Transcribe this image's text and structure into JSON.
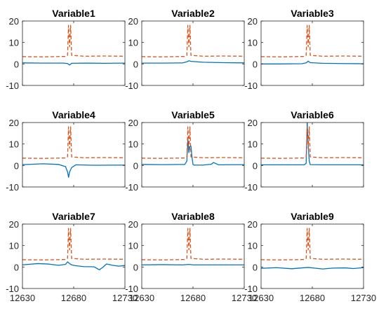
{
  "chart_data": [
    {
      "type": "line",
      "title": "Variable1",
      "xlim": [
        12630,
        12730
      ],
      "ylim": [
        -10,
        20
      ],
      "xticks": [
        12630,
        12680,
        12730
      ],
      "yticks": [
        -10,
        0,
        10,
        20
      ],
      "x_tick_labels_visible": false,
      "colors": {
        "series1": "#0072BD",
        "series2": "#D95319"
      },
      "series": [
        {
          "style": "solid",
          "x": [
            12630,
            12650,
            12670,
            12674,
            12676,
            12678,
            12690,
            12710,
            12730
          ],
          "y": [
            0.5,
            0.4,
            0.4,
            0.2,
            -0.5,
            0.3,
            0.4,
            0.3,
            0.4
          ]
        },
        {
          "style": "dashed",
          "x": [
            12630,
            12650,
            12672,
            12674,
            12675,
            12676,
            12677,
            12678,
            12690,
            12710,
            12730
          ],
          "y": [
            3.4,
            3.3,
            3.5,
            4,
            18,
            8,
            18,
            4,
            3.6,
            3.7,
            3.6
          ]
        }
      ]
    },
    {
      "type": "line",
      "title": "Variable2",
      "xlim": [
        12630,
        12730
      ],
      "ylim": [
        -10,
        20
      ],
      "xticks": [
        12630,
        12680,
        12730
      ],
      "yticks": [
        -10,
        0,
        10,
        20
      ],
      "x_tick_labels_visible": false,
      "colors": {
        "series1": "#0072BD",
        "series2": "#D95319"
      },
      "series": [
        {
          "style": "solid",
          "x": [
            12630,
            12650,
            12670,
            12674,
            12676,
            12678,
            12690,
            12710,
            12730
          ],
          "y": [
            0.4,
            0.4,
            0.5,
            1,
            1.5,
            1.2,
            0.8,
            0.6,
            0.5
          ]
        },
        {
          "style": "dashed",
          "x": [
            12630,
            12650,
            12672,
            12674,
            12675,
            12676,
            12677,
            12678,
            12690,
            12710,
            12730
          ],
          "y": [
            3.4,
            3.3,
            3.5,
            4,
            18,
            8,
            18,
            4,
            3.6,
            3.7,
            3.6
          ]
        }
      ]
    },
    {
      "type": "line",
      "title": "Variable3",
      "xlim": [
        12630,
        12730
      ],
      "ylim": [
        -10,
        20
      ],
      "xticks": [
        12630,
        12680,
        12730
      ],
      "yticks": [
        -10,
        0,
        10,
        20
      ],
      "x_tick_labels_visible": false,
      "colors": {
        "series1": "#0072BD",
        "series2": "#D95319"
      },
      "series": [
        {
          "style": "solid",
          "x": [
            12630,
            12650,
            12670,
            12674,
            12676,
            12678,
            12690,
            12710,
            12730
          ],
          "y": [
            0,
            0,
            0.1,
            0.5,
            1.3,
            0.6,
            0.3,
            0.2,
            0.1
          ]
        },
        {
          "style": "dashed",
          "x": [
            12630,
            12650,
            12672,
            12674,
            12675,
            12676,
            12677,
            12678,
            12690,
            12710,
            12730
          ],
          "y": [
            3.4,
            3.3,
            3.5,
            4,
            18,
            8,
            18,
            4,
            3.6,
            3.7,
            3.6
          ]
        }
      ]
    },
    {
      "type": "line",
      "title": "Variable4",
      "xlim": [
        12630,
        12730
      ],
      "ylim": [
        -10,
        20
      ],
      "xticks": [
        12630,
        12680,
        12730
      ],
      "yticks": [
        -10,
        0,
        10,
        20
      ],
      "x_tick_labels_visible": false,
      "colors": {
        "series1": "#0072BD",
        "series2": "#D95319"
      },
      "series": [
        {
          "style": "solid",
          "x": [
            12630,
            12650,
            12665,
            12672,
            12674,
            12675,
            12676,
            12678,
            12682,
            12700,
            12730
          ],
          "y": [
            0.4,
            0.8,
            0.5,
            -0.5,
            -3,
            -5.5,
            -3,
            -1,
            0.3,
            0.1,
            0.2
          ]
        },
        {
          "style": "dashed",
          "x": [
            12630,
            12650,
            12672,
            12674,
            12675,
            12676,
            12677,
            12678,
            12690,
            12710,
            12730
          ],
          "y": [
            3.4,
            3.3,
            3.5,
            4,
            18,
            8,
            18,
            4,
            3.6,
            3.7,
            3.6
          ]
        }
      ]
    },
    {
      "type": "line",
      "title": "Variable5",
      "xlim": [
        12630,
        12730
      ],
      "ylim": [
        -10,
        20
      ],
      "xticks": [
        12630,
        12680,
        12730
      ],
      "yticks": [
        -10,
        0,
        10,
        20
      ],
      "x_tick_labels_visible": false,
      "colors": {
        "series1": "#0072BD",
        "series2": "#D95319"
      },
      "series": [
        {
          "style": "solid",
          "x": [
            12630,
            12650,
            12672,
            12674,
            12675,
            12676,
            12677,
            12678,
            12679,
            12680,
            12681,
            12690,
            12698,
            12700,
            12705,
            12730
          ],
          "y": [
            0.5,
            0.4,
            0.5,
            2,
            12,
            6,
            9,
            9,
            4,
            0.5,
            0.2,
            0.2,
            0.6,
            1.4,
            0.3,
            0.4
          ]
        },
        {
          "style": "dashed",
          "x": [
            12630,
            12650,
            12672,
            12674,
            12675,
            12676,
            12677,
            12678,
            12690,
            12710,
            12730
          ],
          "y": [
            3.4,
            3.3,
            3.5,
            4,
            18,
            8,
            18,
            4,
            3.6,
            3.7,
            3.6
          ]
        }
      ]
    },
    {
      "type": "line",
      "title": "Variable6",
      "xlim": [
        12630,
        12730
      ],
      "ylim": [
        -10,
        20
      ],
      "xticks": [
        12630,
        12680,
        12730
      ],
      "yticks": [
        -10,
        0,
        10,
        20
      ],
      "x_tick_labels_visible": false,
      "colors": {
        "series1": "#0072BD",
        "series2": "#D95319"
      },
      "series": [
        {
          "style": "solid",
          "x": [
            12630,
            12650,
            12672,
            12674,
            12675,
            12676,
            12677,
            12678,
            12690,
            12710,
            12730
          ],
          "y": [
            0.3,
            0.3,
            0.3,
            1,
            20,
            10,
            2,
            0.4,
            0.3,
            0.3,
            0.3
          ]
        },
        {
          "style": "dashed",
          "x": [
            12630,
            12650,
            12672,
            12674,
            12675,
            12676,
            12677,
            12678,
            12690,
            12710,
            12730
          ],
          "y": [
            3.4,
            3.3,
            3.5,
            4,
            18,
            8,
            18,
            4,
            3.6,
            3.7,
            3.6
          ]
        }
      ]
    },
    {
      "type": "line",
      "title": "Variable7",
      "xlim": [
        12630,
        12730
      ],
      "ylim": [
        -10,
        20
      ],
      "xticks": [
        12630,
        12680,
        12730
      ],
      "yticks": [
        -10,
        0,
        10,
        20
      ],
      "x_tick_labels_visible": true,
      "colors": {
        "series1": "#0072BD",
        "series2": "#D95319"
      },
      "series": [
        {
          "style": "solid",
          "x": [
            12630,
            12645,
            12655,
            12665,
            12672,
            12674,
            12676,
            12678,
            12682,
            12690,
            12700,
            12705,
            12708,
            12712,
            12718,
            12724,
            12730
          ],
          "y": [
            1,
            1.6,
            1.4,
            0.8,
            1.2,
            2.4,
            1.6,
            1,
            0.6,
            0.2,
            0.1,
            -1.3,
            -0.3,
            1.4,
            0.8,
            0.4,
            0.7
          ]
        },
        {
          "style": "dashed",
          "x": [
            12630,
            12650,
            12672,
            12674,
            12675,
            12676,
            12677,
            12678,
            12690,
            12710,
            12730
          ],
          "y": [
            3.4,
            3.3,
            3.5,
            4,
            18,
            8,
            18,
            4,
            3.6,
            3.7,
            3.6
          ]
        }
      ]
    },
    {
      "type": "line",
      "title": "Variable8",
      "xlim": [
        12630,
        12730
      ],
      "ylim": [
        -10,
        20
      ],
      "xticks": [
        12630,
        12680,
        12730
      ],
      "yticks": [
        -10,
        0,
        10,
        20
      ],
      "x_tick_labels_visible": true,
      "colors": {
        "series1": "#0072BD",
        "series2": "#D95319"
      },
      "series": [
        {
          "style": "solid",
          "x": [
            12630,
            12650,
            12670,
            12676,
            12680,
            12700,
            12730
          ],
          "y": [
            1,
            1.1,
            1,
            1.2,
            1,
            1,
            1
          ]
        },
        {
          "style": "dashed",
          "x": [
            12630,
            12650,
            12672,
            12674,
            12675,
            12676,
            12677,
            12678,
            12690,
            12710,
            12730
          ],
          "y": [
            3.4,
            3.3,
            3.5,
            4,
            18,
            8,
            18,
            4,
            3.6,
            3.7,
            3.6
          ]
        }
      ]
    },
    {
      "type": "line",
      "title": "Variable9",
      "xlim": [
        12630,
        12730
      ],
      "ylim": [
        -10,
        20
      ],
      "xticks": [
        12630,
        12680,
        12730
      ],
      "yticks": [
        -10,
        0,
        10,
        20
      ],
      "x_tick_labels_visible": true,
      "colors": {
        "series1": "#0072BD",
        "series2": "#D95319"
      },
      "series": [
        {
          "style": "solid",
          "x": [
            12630,
            12645,
            12660,
            12670,
            12676,
            12682,
            12690,
            12700,
            12712,
            12720,
            12730
          ],
          "y": [
            -0.6,
            -0.3,
            -0.8,
            -0.4,
            -0.2,
            -0.5,
            -0.9,
            -0.5,
            -0.4,
            -0.7,
            -0.3
          ]
        },
        {
          "style": "dashed",
          "x": [
            12630,
            12650,
            12672,
            12674,
            12675,
            12676,
            12677,
            12678,
            12690,
            12710,
            12730
          ],
          "y": [
            3.4,
            3.3,
            3.5,
            4,
            18,
            8,
            18,
            4,
            3.6,
            3.7,
            3.6
          ]
        }
      ]
    }
  ]
}
